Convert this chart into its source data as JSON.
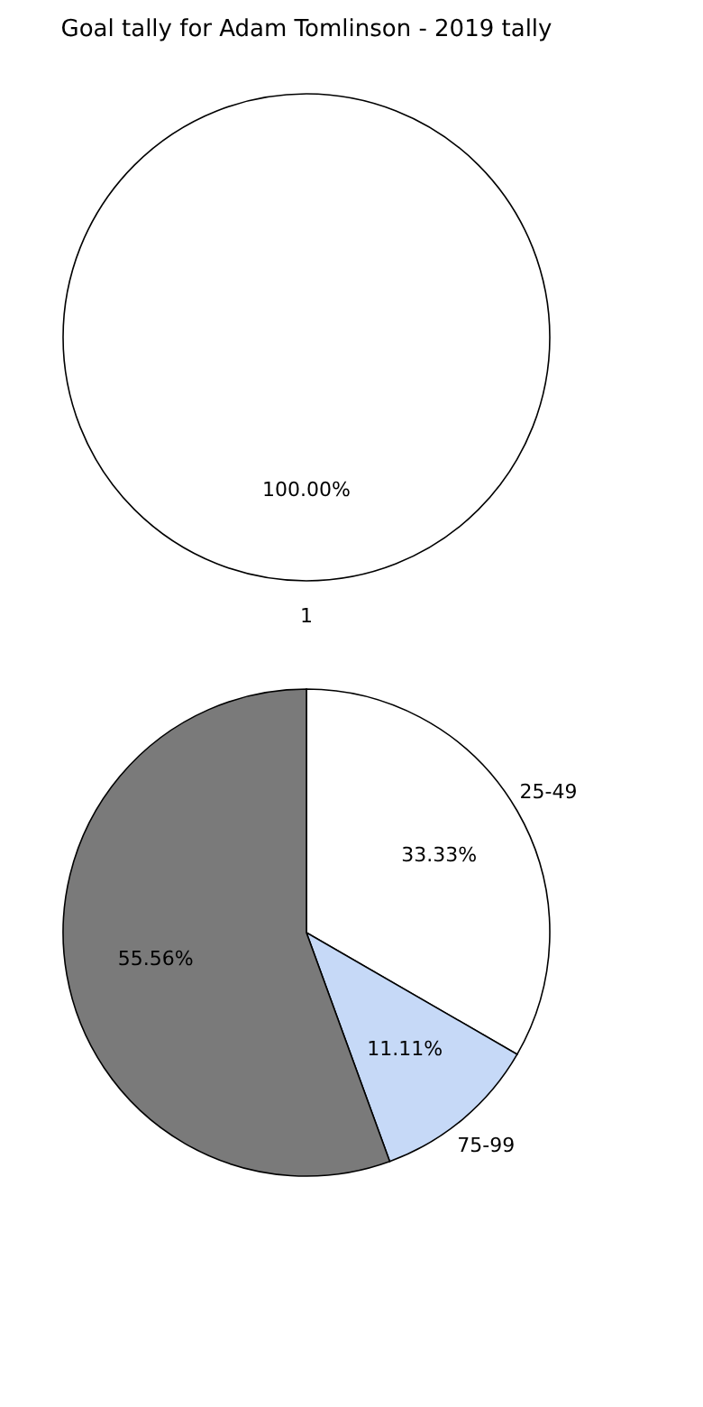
{
  "chart_data": [
    {
      "type": "pie",
      "title": "Goal tally for Adam Tomlinson - 2019 tally",
      "categories": [
        "1"
      ],
      "values": [
        100
      ],
      "colors": [
        "#ffffff"
      ],
      "value_labels": [
        "100.00%"
      ]
    },
    {
      "type": "pie",
      "categories": [
        "25-49",
        "75-99",
        null
      ],
      "values": [
        33.33,
        11.11,
        55.56
      ],
      "colors": [
        "#ffffff",
        "#c6d9f7",
        "#7a7a7a"
      ],
      "value_labels": [
        "33.33%",
        "11.11%",
        "55.56%"
      ]
    }
  ]
}
